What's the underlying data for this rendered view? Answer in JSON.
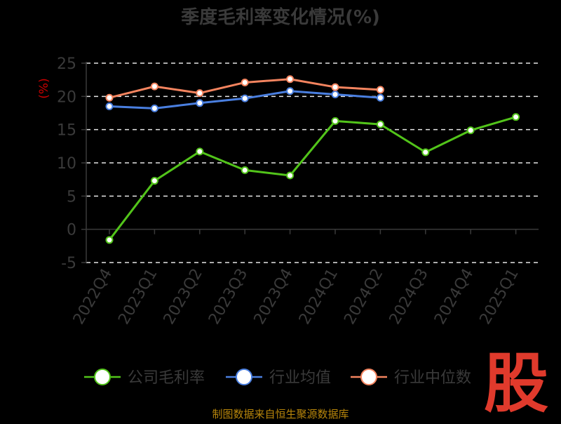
{
  "chart_data": {
    "type": "line",
    "title": "季度毛利率变化情况(%)",
    "xlabel": "",
    "ylabel": "(%)",
    "ylim": [
      -5,
      25
    ],
    "yticks": [
      "-5",
      "0",
      "5",
      "10",
      "15",
      "20",
      "25"
    ],
    "grid": true,
    "legend_position": "bottom",
    "categories": [
      "2022Q4",
      "2023Q1",
      "2023Q2",
      "2023Q3",
      "2023Q4",
      "2024Q1",
      "2024Q2",
      "2024Q3",
      "2024Q4",
      "2025Q1"
    ],
    "series": [
      {
        "name": "公司毛利率",
        "color": "#52c41a",
        "values": [
          -1.6,
          7.3,
          11.7,
          8.9,
          8.1,
          16.3,
          15.8,
          11.6,
          14.9,
          16.9
        ]
      },
      {
        "name": "行业均值",
        "color": "#4a7fe0",
        "values": [
          18.5,
          18.2,
          19.0,
          19.7,
          20.8,
          20.3,
          19.8,
          null,
          null,
          null
        ]
      },
      {
        "name": "行业中位数",
        "color": "#f4845f",
        "values": [
          19.8,
          21.5,
          20.5,
          22.1,
          22.6,
          21.4,
          21.0,
          null,
          null,
          null
        ]
      }
    ]
  },
  "source": "制图数据来自恒生聚源数据库",
  "brand": "股"
}
